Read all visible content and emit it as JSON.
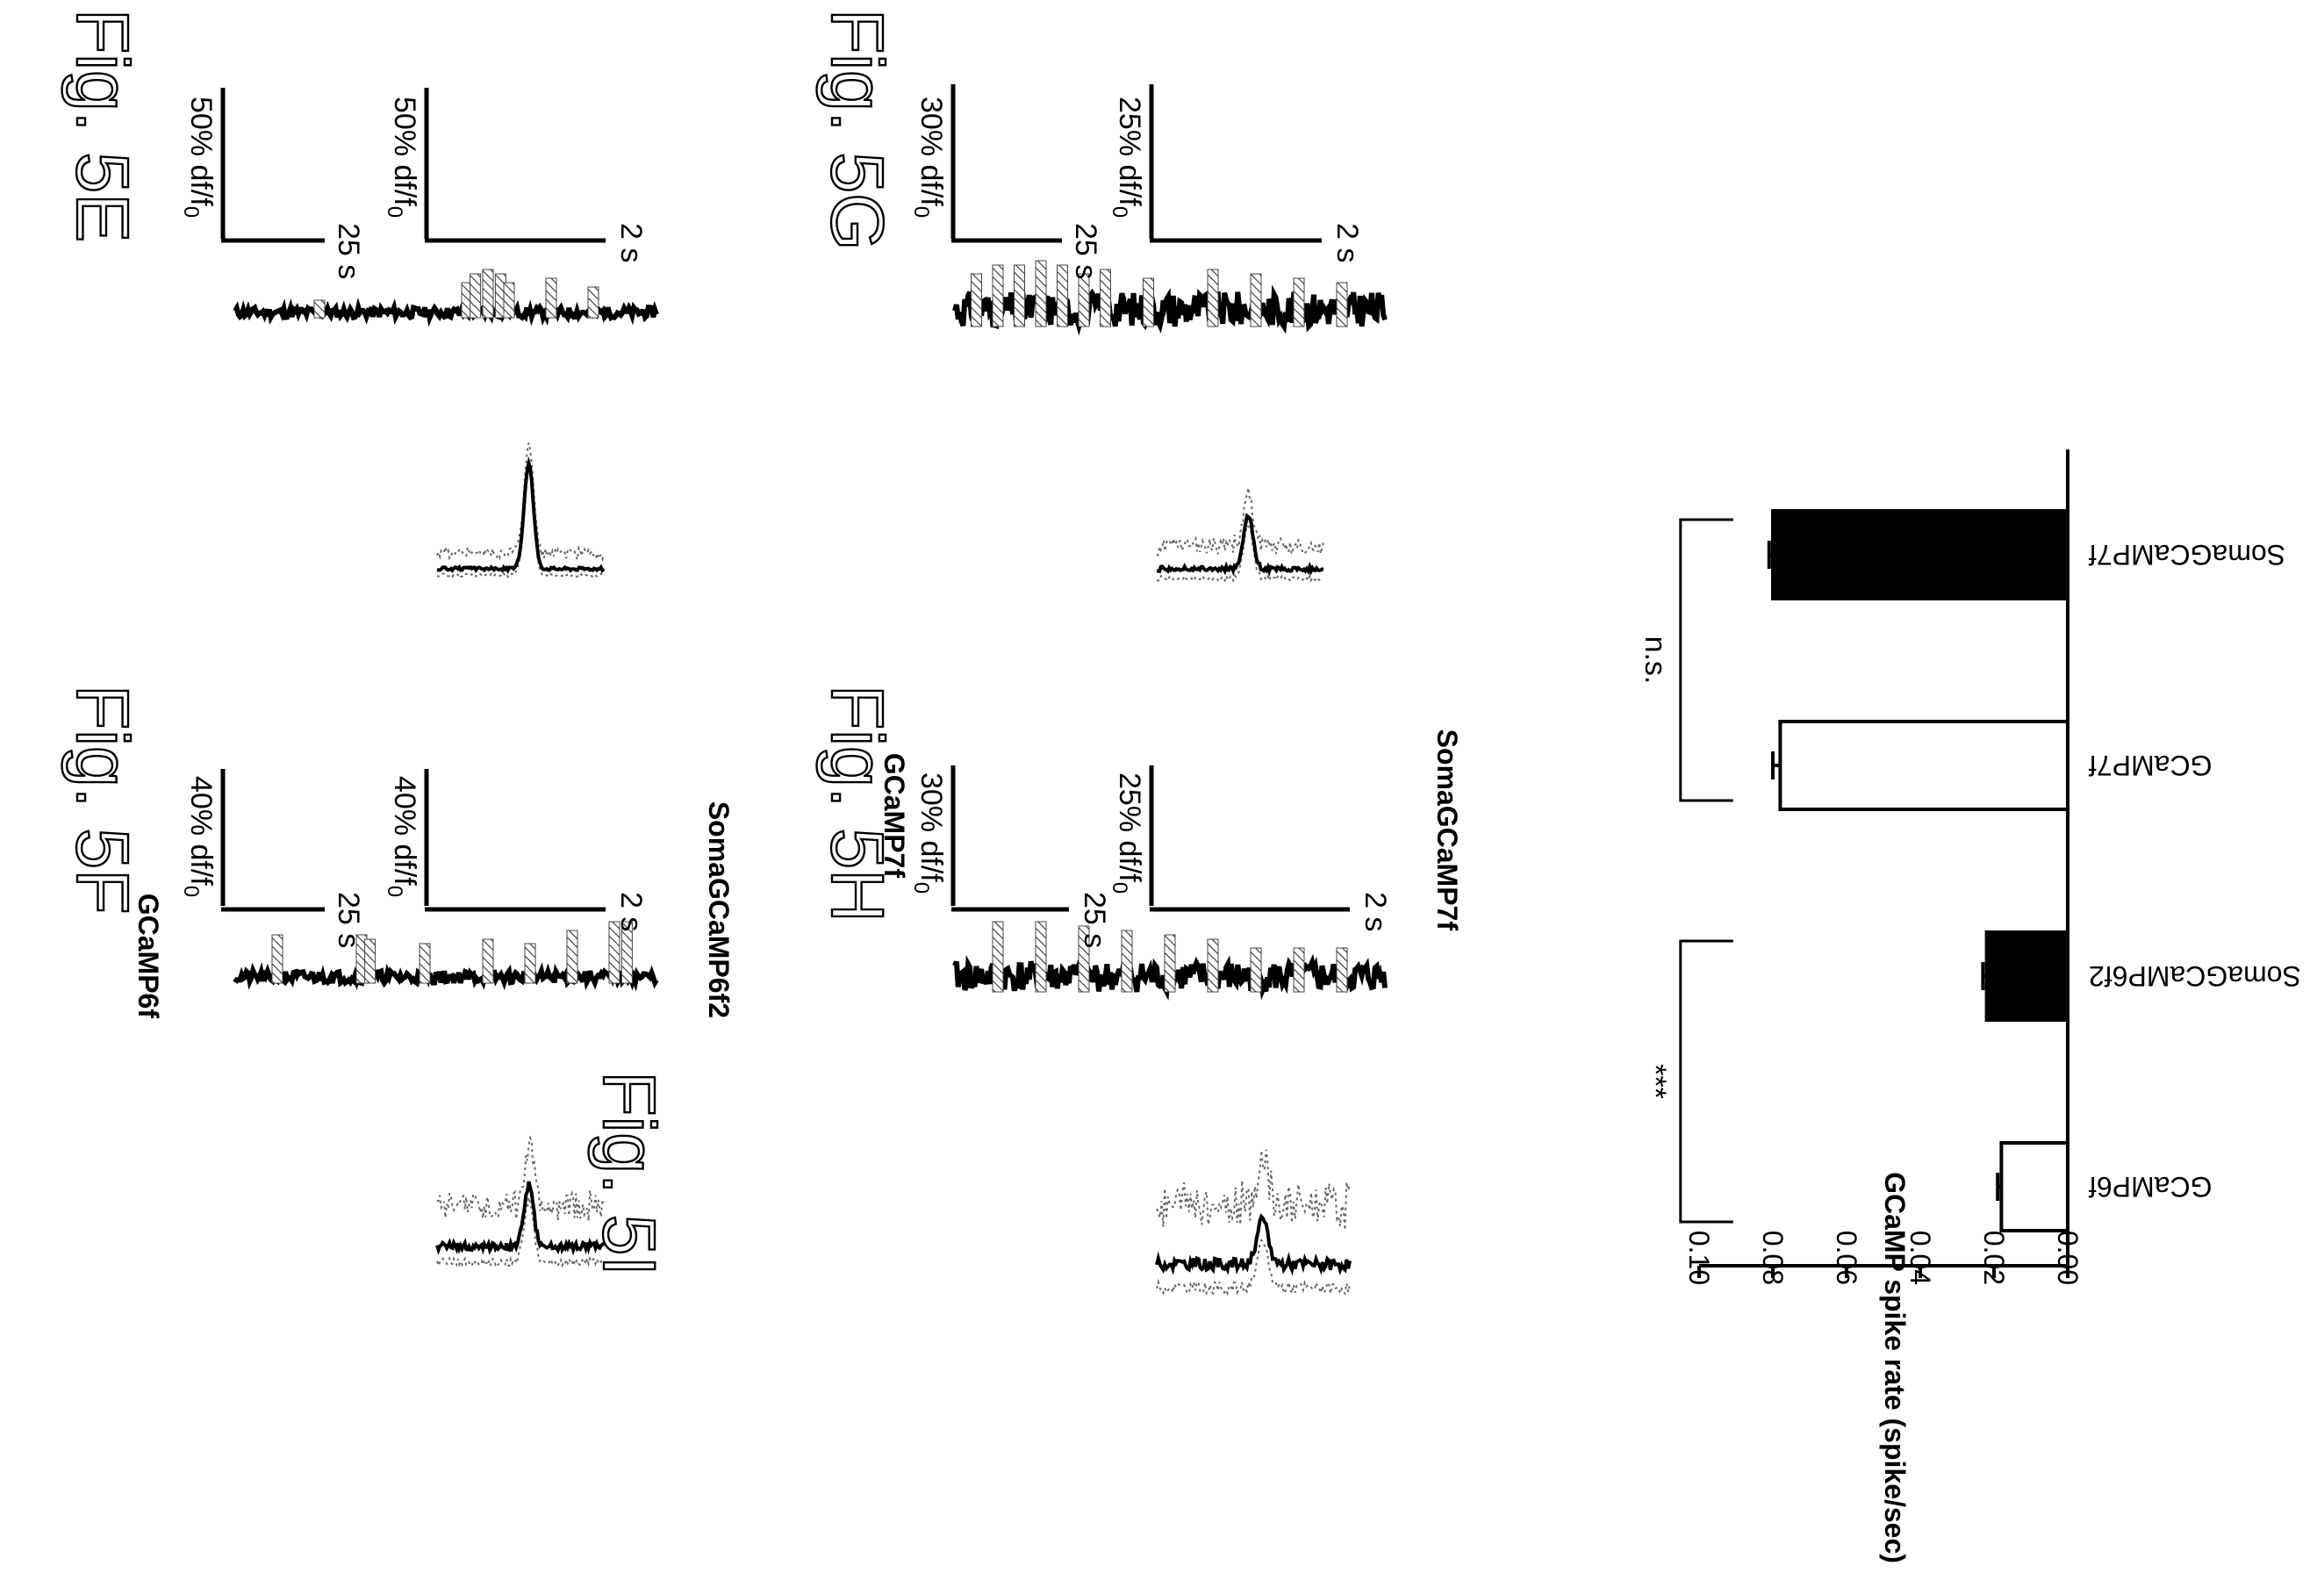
{
  "figures": {
    "e": "Fig. 5E",
    "f": "Fig. 5F",
    "g": "Fig. 5G",
    "h": "Fig. 5H",
    "i": "Fig. 5I"
  },
  "panels": {
    "e": {
      "condition": "GCaMP6f",
      "scale_top_y": "50% df/f",
      "scale_top_x": "25 s",
      "scale_bottom_y": "50% df/f",
      "scale_bottom_x": "2 s"
    },
    "f": {
      "condition": "SomaGCaMP6f2",
      "scale_top_y": "40% df/f",
      "scale_top_x": "25 s",
      "scale_bottom_y": "40% df/f",
      "scale_bottom_x": "2 s"
    },
    "g": {
      "condition": "GCaMP7f",
      "scale_top_y": "30% df/f",
      "scale_top_x": "25 s",
      "scale_bottom_y": "25% df/f",
      "scale_bottom_x": "2 s"
    },
    "h": {
      "condition": "SomaGCaMP7f",
      "scale_top_y": "30% df/f",
      "scale_top_x": "25 s",
      "scale_bottom_y": "25% df/f",
      "scale_bottom_x": "2 s"
    }
  },
  "df_subscript": "0",
  "chart_data": {
    "type": "bar",
    "categories": [
      "GCaMP6f",
      "SomaGCaMP6f2",
      "GCaMP7f",
      "SomaGCaMP7f"
    ],
    "values": [
      0.018,
      0.022,
      0.078,
      0.08
    ],
    "errors": [
      0.001,
      0.001,
      0.002,
      0.001
    ],
    "fills": [
      "#ffffff",
      "#000000",
      "#ffffff",
      "#000000"
    ],
    "ylabel": "GCaMP spike rate (spike/sec)",
    "ylim": [
      0,
      0.1
    ],
    "yticks": [
      "0.00",
      "0.02",
      "0.04",
      "0.06",
      "0.08",
      "0.10"
    ],
    "comparisons": [
      {
        "pair": [
          0,
          1
        ],
        "label": "***"
      },
      {
        "pair": [
          2,
          3
        ],
        "label": "n.s."
      }
    ]
  }
}
